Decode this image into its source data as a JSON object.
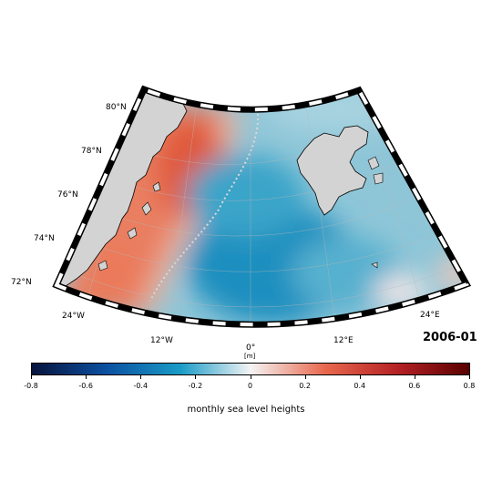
{
  "map": {
    "date": "2006-01",
    "lat_labels": [
      "72°N",
      "74°N",
      "76°N",
      "78°N",
      "80°N"
    ],
    "lon_labels": [
      "24°W",
      "12°W",
      "0°",
      "12°E",
      "24°E"
    ],
    "projection": "conic sector",
    "land_color": "#d3d3d3",
    "coastline_color": "#000000"
  },
  "colorbar": {
    "unit": "[m]",
    "title": "monthly sea level heights",
    "ticks": [
      "-0.8",
      "-0.6",
      "-0.4",
      "-0.2",
      "0",
      "0.2",
      "0.4",
      "0.6",
      "0.8"
    ],
    "range": [
      -0.8,
      0.8
    ],
    "colors": [
      "#08133d",
      "#0b50a0",
      "#1a9bc7",
      "#f4f4f4",
      "#e8684d",
      "#b32024",
      "#590000"
    ]
  }
}
